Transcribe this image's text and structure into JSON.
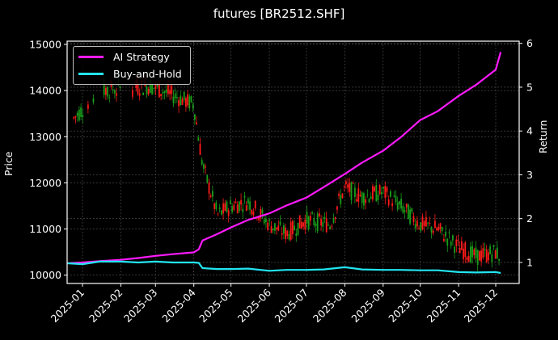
{
  "chart_data": {
    "type": "line",
    "title": "futures [BR2512.SHF]",
    "xlabel": "",
    "ylabel": "Price",
    "ylabel_right": "Return",
    "x_ticks": [
      "2025-01",
      "2025-02",
      "2025-03",
      "2025-04",
      "2025-05",
      "2025-06",
      "2025-07",
      "2025-08",
      "2025-09",
      "2025-10",
      "2025-11",
      "2025-12"
    ],
    "y_left_ticks": [
      10000,
      11000,
      12000,
      13000,
      14000,
      15000
    ],
    "y_right_ticks": [
      1,
      2,
      3,
      4,
      5,
      6
    ],
    "ylim_left": [
      9820,
      15070
    ],
    "ylim_right": [
      0.52,
      6.05
    ],
    "grid": true,
    "legend_position": "upper left",
    "series": [
      {
        "name": "AI Strategy",
        "axis": "right",
        "color": "#ff1aff",
        "x": [
          "2024-12-20",
          "2025-01-01",
          "2025-01-15",
          "2025-02-01",
          "2025-02-15",
          "2025-03-01",
          "2025-03-15",
          "2025-04-01",
          "2025-04-05",
          "2025-04-08",
          "2025-04-20",
          "2025-05-01",
          "2025-05-15",
          "2025-06-01",
          "2025-06-15",
          "2025-07-01",
          "2025-07-15",
          "2025-08-01",
          "2025-08-15",
          "2025-09-01",
          "2025-09-15",
          "2025-10-01",
          "2025-10-15",
          "2025-11-01",
          "2025-11-15",
          "2025-12-01",
          "2025-12-05"
        ],
        "values": [
          0.98,
          1.0,
          1.03,
          1.06,
          1.1,
          1.15,
          1.19,
          1.23,
          1.3,
          1.5,
          1.65,
          1.8,
          1.97,
          2.12,
          2.3,
          2.48,
          2.72,
          3.02,
          3.28,
          3.55,
          3.85,
          4.25,
          4.45,
          4.8,
          5.05,
          5.4,
          5.8
        ]
      },
      {
        "name": "Buy-and-Hold",
        "axis": "right",
        "color": "#22e5f0",
        "x": [
          "2024-12-20",
          "2025-01-01",
          "2025-01-15",
          "2025-02-01",
          "2025-02-15",
          "2025-03-01",
          "2025-03-15",
          "2025-04-01",
          "2025-04-05",
          "2025-04-08",
          "2025-04-20",
          "2025-05-01",
          "2025-05-15",
          "2025-06-01",
          "2025-06-15",
          "2025-07-01",
          "2025-07-15",
          "2025-08-01",
          "2025-08-15",
          "2025-09-01",
          "2025-09-15",
          "2025-10-01",
          "2025-10-15",
          "2025-11-01",
          "2025-11-15",
          "2025-12-01",
          "2025-12-05"
        ],
        "values": [
          0.98,
          0.96,
          1.02,
          1.02,
          1.0,
          1.02,
          1.0,
          1.0,
          0.99,
          0.87,
          0.85,
          0.85,
          0.86,
          0.81,
          0.83,
          0.83,
          0.84,
          0.89,
          0.84,
          0.83,
          0.83,
          0.82,
          0.82,
          0.78,
          0.77,
          0.78,
          0.76
        ]
      },
      {
        "name": "BR2512.SHF price (candlestick)",
        "axis": "left",
        "type": "candlestick",
        "up_color": "#ff1a1a",
        "down_color": "#1a9e1a",
        "x": [
          "2024-12-25",
          "2025-01-15",
          "2025-02-25",
          "2025-03-15",
          "2025-04-01",
          "2025-04-08",
          "2025-04-20",
          "2025-05-01",
          "2025-05-15",
          "2025-06-01",
          "2025-06-15",
          "2025-07-01",
          "2025-07-20",
          "2025-08-01",
          "2025-08-15",
          "2025-09-01",
          "2025-09-15",
          "2025-10-01",
          "2025-10-15",
          "2025-11-01",
          "2025-11-15",
          "2025-12-01",
          "2025-12-05"
        ],
        "values": [
          13400,
          14000,
          14100,
          13900,
          13700,
          12400,
          11300,
          11500,
          11600,
          11100,
          10900,
          11200,
          11100,
          11900,
          11700,
          11800,
          11500,
          11100,
          11000,
          10600,
          10400,
          10500,
          10400
        ]
      }
    ]
  },
  "legend": {
    "items": [
      {
        "label": "AI Strategy",
        "color": "#ff1aff"
      },
      {
        "label": "Buy-and-Hold",
        "color": "#22e5f0"
      }
    ]
  },
  "colors": {
    "background": "#000000",
    "axes": "#ffffff",
    "grid": "#555555"
  }
}
